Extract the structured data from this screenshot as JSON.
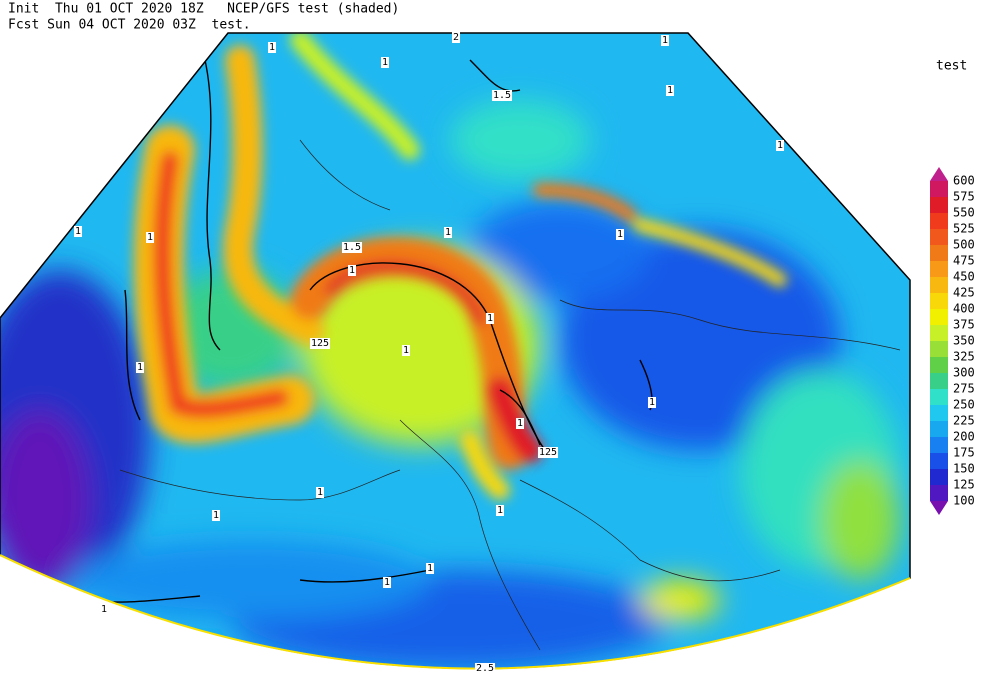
{
  "header": {
    "line1": "Init  Thu 01 OCT 2020 18Z   NCEP/GFS test (shaded)",
    "line2": "Fcst Sun 04 OCT 2020 03Z  test."
  },
  "legend": {
    "title": "test",
    "ticks": [
      600,
      575,
      550,
      525,
      500,
      475,
      450,
      425,
      400,
      375,
      350,
      325,
      300,
      275,
      250,
      225,
      200,
      175,
      150,
      125,
      100
    ],
    "colors": [
      "#c0208c",
      "#d01860",
      "#e01c28",
      "#f03c1c",
      "#f0581c",
      "#f07a18",
      "#f89a18",
      "#f8b810",
      "#f8d808",
      "#f0f000",
      "#c8f028",
      "#98e038",
      "#60d048",
      "#38d088",
      "#30e0c8",
      "#20c8f0",
      "#18a8f0",
      "#1880f0",
      "#1850e8",
      "#2028d0",
      "#5018c0",
      "#7810b0"
    ]
  },
  "contour_labels": [
    "1",
    "1",
    "2",
    "1.5",
    "1",
    "1",
    "1",
    "1",
    "1",
    "1.5",
    "1",
    "1",
    "1",
    "125",
    "1",
    "1",
    "1",
    "1",
    "1",
    "125",
    "1",
    "1",
    "1",
    "1",
    "1",
    "1",
    "2.5"
  ]
}
